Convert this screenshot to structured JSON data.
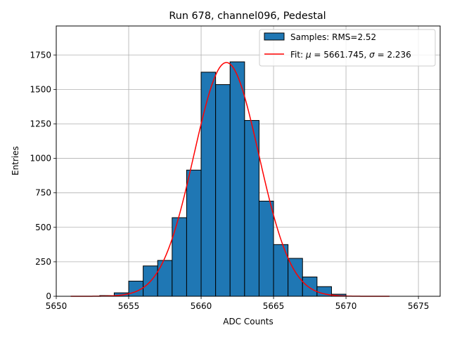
{
  "chart_data": {
    "type": "bar",
    "title": "Run 678, channel096, Pedestal",
    "xlabel": "ADC Counts",
    "ylabel": "Entries",
    "xlim": [
      5650,
      5676.5
    ],
    "ylim": [
      0,
      1960
    ],
    "xticks": [
      5650,
      5655,
      5660,
      5665,
      5670,
      5675
    ],
    "yticks": [
      0,
      250,
      500,
      750,
      1000,
      1250,
      1500,
      1750
    ],
    "grid": true,
    "legend_position": "top-right",
    "histogram": {
      "name": "Samples: RMS=2.52",
      "color": "#1f77b4",
      "edges": [
        5651,
        5652,
        5653,
        5654,
        5655,
        5656,
        5657,
        5658,
        5659,
        5660,
        5661,
        5662,
        5663,
        5664,
        5665,
        5666,
        5667,
        5668,
        5669,
        5670,
        5671,
        5672,
        5673
      ],
      "counts": [
        0,
        0,
        5,
        25,
        110,
        220,
        260,
        570,
        915,
        1625,
        1535,
        1700,
        1275,
        690,
        375,
        275,
        140,
        70,
        15,
        0,
        0,
        0
      ]
    },
    "fit": {
      "name": "Fit: μ = 5661.745, σ = 2.236",
      "legend_prefix": "Fit: ",
      "legend_mu_symbol": "μ",
      "legend_mu_text": " = 5661.745, ",
      "legend_sigma_symbol": "σ",
      "legend_sigma_text": " = 2.236",
      "color": "#ff0000",
      "mu": 5661.745,
      "sigma": 2.236,
      "amplitude": 1695,
      "x_range": [
        5651,
        5673
      ]
    }
  }
}
